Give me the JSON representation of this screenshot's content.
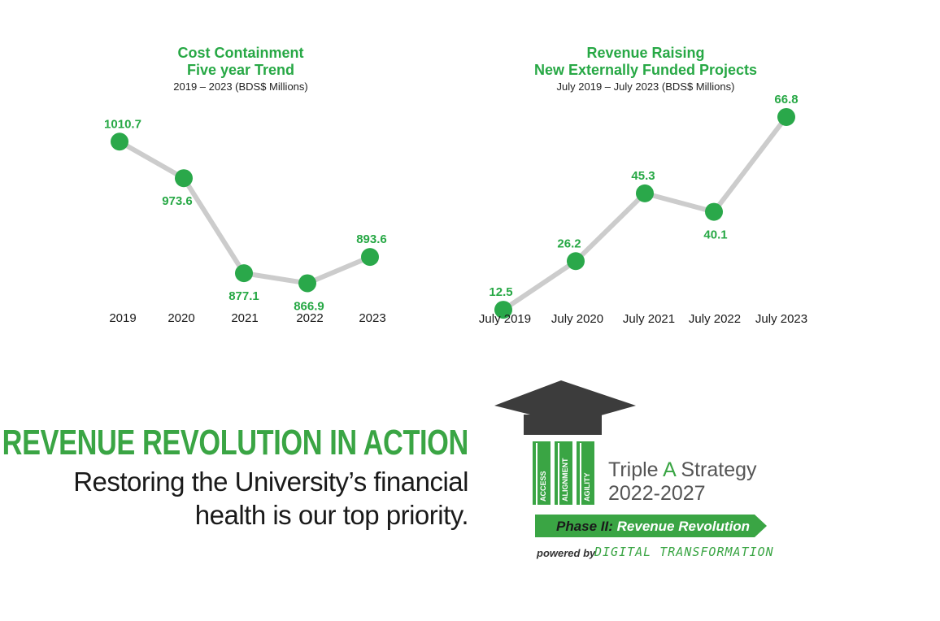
{
  "chart_data": [
    {
      "type": "line",
      "title": [
        "Cost Containment",
        "Five year Trend"
      ],
      "subtitle": "2019 – 2023 (BDS$ Millions)",
      "categories": [
        "2019",
        "2020",
        "2021",
        "2022",
        "2023"
      ],
      "values": [
        1010.7,
        973.6,
        877.1,
        866.9,
        893.6
      ],
      "value_labels": [
        "1010.7",
        "973.6",
        "877.1",
        "866.9",
        "893.6"
      ],
      "label_positions": [
        "above",
        "below",
        "below",
        "below",
        "above"
      ],
      "ylim": [
        845,
        1020
      ],
      "grid": false,
      "legend": "none"
    },
    {
      "type": "line",
      "title": [
        "Revenue Raising",
        "New Externally Funded Projects"
      ],
      "subtitle": "July 2019 – July 2023 (BDS$ Millions)",
      "categories": [
        "July 2019",
        "July 2020",
        "July 2021",
        "July 2022",
        "July 2023"
      ],
      "values": [
        12.5,
        26.2,
        45.3,
        40.1,
        66.8
      ],
      "value_labels": [
        "12.5",
        "26.2",
        "45.3",
        "40.1",
        "66.8"
      ],
      "label_positions": [
        "above",
        "above",
        "above",
        "below",
        "above"
      ],
      "ylim": [
        10,
        70
      ],
      "grid": false,
      "legend": "none"
    }
  ],
  "headline": "REVENUE REVOLUTION IN ACTION",
  "tagline": [
    "Restoring the University’s financial",
    "health is our top priority."
  ],
  "logo": {
    "pillars": [
      "ACCESS",
      "ALIGNMENT",
      "AGILITY"
    ],
    "strategy_title": "Triple A Strategy",
    "strategy_title_parts": [
      "Triple ",
      "A",
      " Strategy"
    ],
    "years": "2022-2027",
    "phase_label": "Phase II:",
    "phase_name": " Revenue Revolution",
    "powered_by": "powered by",
    "powered_name": "DIGITAL TRANSFORMATION"
  },
  "colors": {
    "brand_green": "#27a845",
    "marker_green": "#2aa84a",
    "line_gray": "#cccccc",
    "cap_dark": "#3c3c3c",
    "text_dark": "#1a1a1a"
  }
}
